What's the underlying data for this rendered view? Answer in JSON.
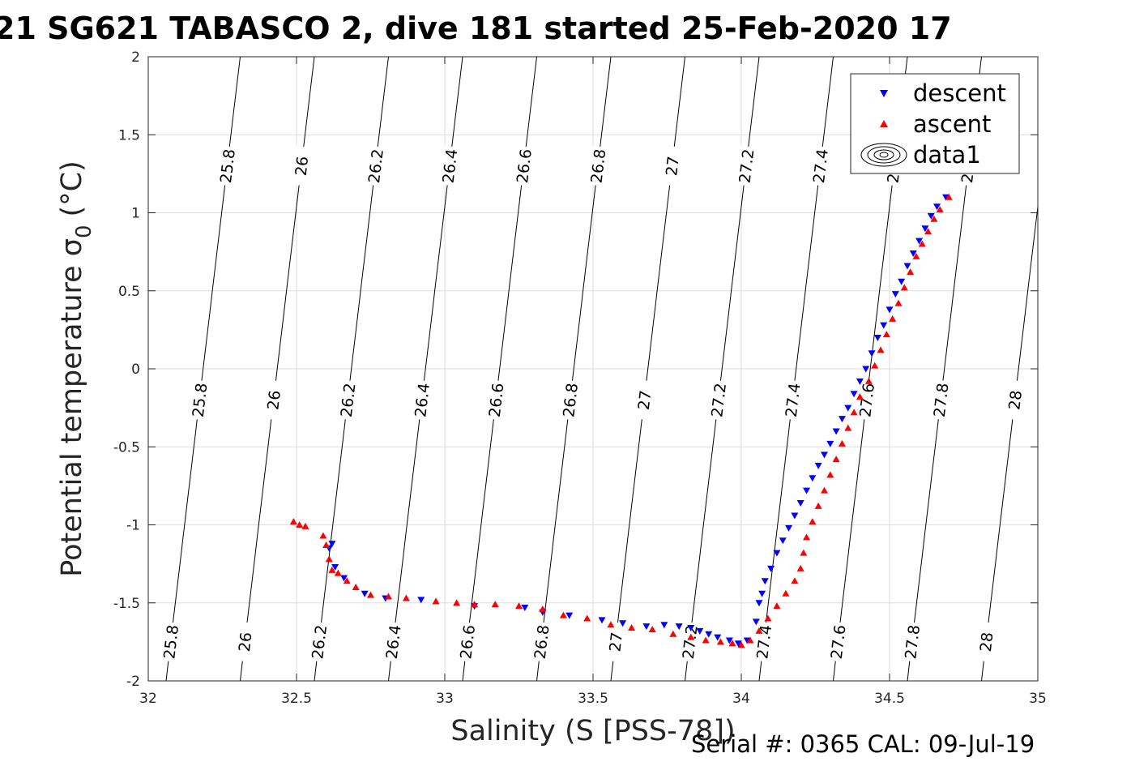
{
  "chart_data": {
    "type": "scatter",
    "title": "21 SG621 TABASCO 2, dive 181 started 25-Feb-2020 17",
    "xlabel": "Salinity (S [PSS-78])",
    "ylabel_main": "Potential temperature σ",
    "ylabel_sub": "0",
    "ylabel_unit": "(°C)",
    "footer": "Serial #: 0365  CAL: 09-Jul-19",
    "xlim": [
      32,
      35
    ],
    "ylim": [
      -2,
      2
    ],
    "x_ticks": [
      "32",
      "32.5",
      "33",
      "33.5",
      "34",
      "34.5",
      "35"
    ],
    "y_ticks": [
      "-2",
      "-1.5",
      "-1",
      "-0.5",
      "0",
      "0.5",
      "1",
      "1.5",
      "2"
    ],
    "grid": true,
    "legend_position": "top-right",
    "legend": [
      {
        "label": "descent",
        "marker": "triangle-down",
        "color": "#0000ff"
      },
      {
        "label": "ascent",
        "marker": "triangle-up",
        "color": "#ff0000"
      },
      {
        "label": "data1",
        "marker": "contour",
        "color": "#000000"
      }
    ],
    "isopycnals": [
      {
        "label": "25.8",
        "value": 25.8
      },
      {
        "label": "26",
        "value": 26.0
      },
      {
        "label": "26.2",
        "value": 26.2
      },
      {
        "label": "26.4",
        "value": 26.4
      },
      {
        "label": "26.6",
        "value": 26.6
      },
      {
        "label": "26.8",
        "value": 26.8
      },
      {
        "label": "27",
        "value": 27.0
      },
      {
        "label": "27.2",
        "value": 27.2
      },
      {
        "label": "27.4",
        "value": 27.4
      },
      {
        "label": "27.6",
        "value": 27.6
      },
      {
        "label": "27.8",
        "value": 27.8
      },
      {
        "label": "28",
        "value": 28.0
      }
    ],
    "series": [
      {
        "name": "descent",
        "color": "#0000ff",
        "points": [
          [
            32.62,
            -1.12
          ],
          [
            32.61,
            -1.15
          ],
          [
            32.63,
            -1.27
          ],
          [
            32.66,
            -1.34
          ],
          [
            32.73,
            -1.44
          ],
          [
            32.8,
            -1.47
          ],
          [
            32.92,
            -1.48
          ],
          [
            33.1,
            -1.52
          ],
          [
            33.27,
            -1.53
          ],
          [
            33.33,
            -1.56
          ],
          [
            33.42,
            -1.58
          ],
          [
            33.53,
            -1.61
          ],
          [
            33.6,
            -1.63
          ],
          [
            33.68,
            -1.65
          ],
          [
            33.74,
            -1.64
          ],
          [
            33.79,
            -1.65
          ],
          [
            33.83,
            -1.66
          ],
          [
            33.86,
            -1.68
          ],
          [
            33.89,
            -1.7
          ],
          [
            33.92,
            -1.72
          ],
          [
            33.96,
            -1.74
          ],
          [
            33.99,
            -1.76
          ],
          [
            34.02,
            -1.74
          ],
          [
            34.05,
            -1.62
          ],
          [
            34.06,
            -1.5
          ],
          [
            34.07,
            -1.44
          ],
          [
            34.08,
            -1.36
          ],
          [
            34.1,
            -1.28
          ],
          [
            34.12,
            -1.18
          ],
          [
            34.14,
            -1.1
          ],
          [
            34.16,
            -1.02
          ],
          [
            34.18,
            -0.94
          ],
          [
            34.2,
            -0.86
          ],
          [
            34.22,
            -0.78
          ],
          [
            34.24,
            -0.7
          ],
          [
            34.26,
            -0.62
          ],
          [
            34.28,
            -0.55
          ],
          [
            34.3,
            -0.48
          ],
          [
            34.32,
            -0.4
          ],
          [
            34.34,
            -0.32
          ],
          [
            34.36,
            -0.25
          ],
          [
            34.38,
            -0.16
          ],
          [
            34.4,
            -0.08
          ],
          [
            34.42,
            0.0
          ],
          [
            34.44,
            0.1
          ],
          [
            34.46,
            0.2
          ],
          [
            34.48,
            0.28
          ],
          [
            34.5,
            0.38
          ],
          [
            34.52,
            0.48
          ],
          [
            34.54,
            0.56
          ],
          [
            34.56,
            0.66
          ],
          [
            34.58,
            0.74
          ],
          [
            34.6,
            0.82
          ],
          [
            34.62,
            0.9
          ],
          [
            34.64,
            0.98
          ],
          [
            34.66,
            1.04
          ],
          [
            34.69,
            1.1
          ]
        ]
      },
      {
        "name": "ascent",
        "color": "#ff0000",
        "points": [
          [
            32.49,
            -0.98
          ],
          [
            32.51,
            -1.0
          ],
          [
            32.53,
            -1.01
          ],
          [
            32.59,
            -1.07
          ],
          [
            32.6,
            -1.13
          ],
          [
            32.61,
            -1.22
          ],
          [
            32.62,
            -1.29
          ],
          [
            32.64,
            -1.31
          ],
          [
            32.67,
            -1.36
          ],
          [
            32.7,
            -1.4
          ],
          [
            32.75,
            -1.45
          ],
          [
            32.81,
            -1.46
          ],
          [
            32.87,
            -1.47
          ],
          [
            32.97,
            -1.49
          ],
          [
            33.04,
            -1.5
          ],
          [
            33.1,
            -1.51
          ],
          [
            33.17,
            -1.51
          ],
          [
            33.25,
            -1.52
          ],
          [
            33.33,
            -1.54
          ],
          [
            33.4,
            -1.58
          ],
          [
            33.48,
            -1.6
          ],
          [
            33.56,
            -1.64
          ],
          [
            33.63,
            -1.66
          ],
          [
            33.7,
            -1.67
          ],
          [
            33.77,
            -1.7
          ],
          [
            33.83,
            -1.72
          ],
          [
            33.88,
            -1.74
          ],
          [
            33.93,
            -1.75
          ],
          [
            33.97,
            -1.76
          ],
          [
            34.0,
            -1.77
          ],
          [
            34.03,
            -1.74
          ],
          [
            34.06,
            -1.68
          ],
          [
            34.09,
            -1.6
          ],
          [
            34.12,
            -1.52
          ],
          [
            34.15,
            -1.44
          ],
          [
            34.18,
            -1.36
          ],
          [
            34.2,
            -1.28
          ],
          [
            34.21,
            -1.18
          ],
          [
            34.22,
            -1.08
          ],
          [
            34.24,
            -0.98
          ],
          [
            34.26,
            -0.88
          ],
          [
            34.28,
            -0.78
          ],
          [
            34.3,
            -0.68
          ],
          [
            34.32,
            -0.58
          ],
          [
            34.34,
            -0.48
          ],
          [
            34.36,
            -0.38
          ],
          [
            34.38,
            -0.28
          ],
          [
            34.4,
            -0.18
          ],
          [
            34.43,
            -0.08
          ],
          [
            34.45,
            0.02
          ],
          [
            34.47,
            0.12
          ],
          [
            34.49,
            0.22
          ],
          [
            34.51,
            0.32
          ],
          [
            34.53,
            0.42
          ],
          [
            34.55,
            0.52
          ],
          [
            34.57,
            0.62
          ],
          [
            34.59,
            0.72
          ],
          [
            34.61,
            0.8
          ],
          [
            34.63,
            0.88
          ],
          [
            34.65,
            0.96
          ],
          [
            34.67,
            1.02
          ],
          [
            34.7,
            1.1
          ]
        ]
      }
    ]
  }
}
